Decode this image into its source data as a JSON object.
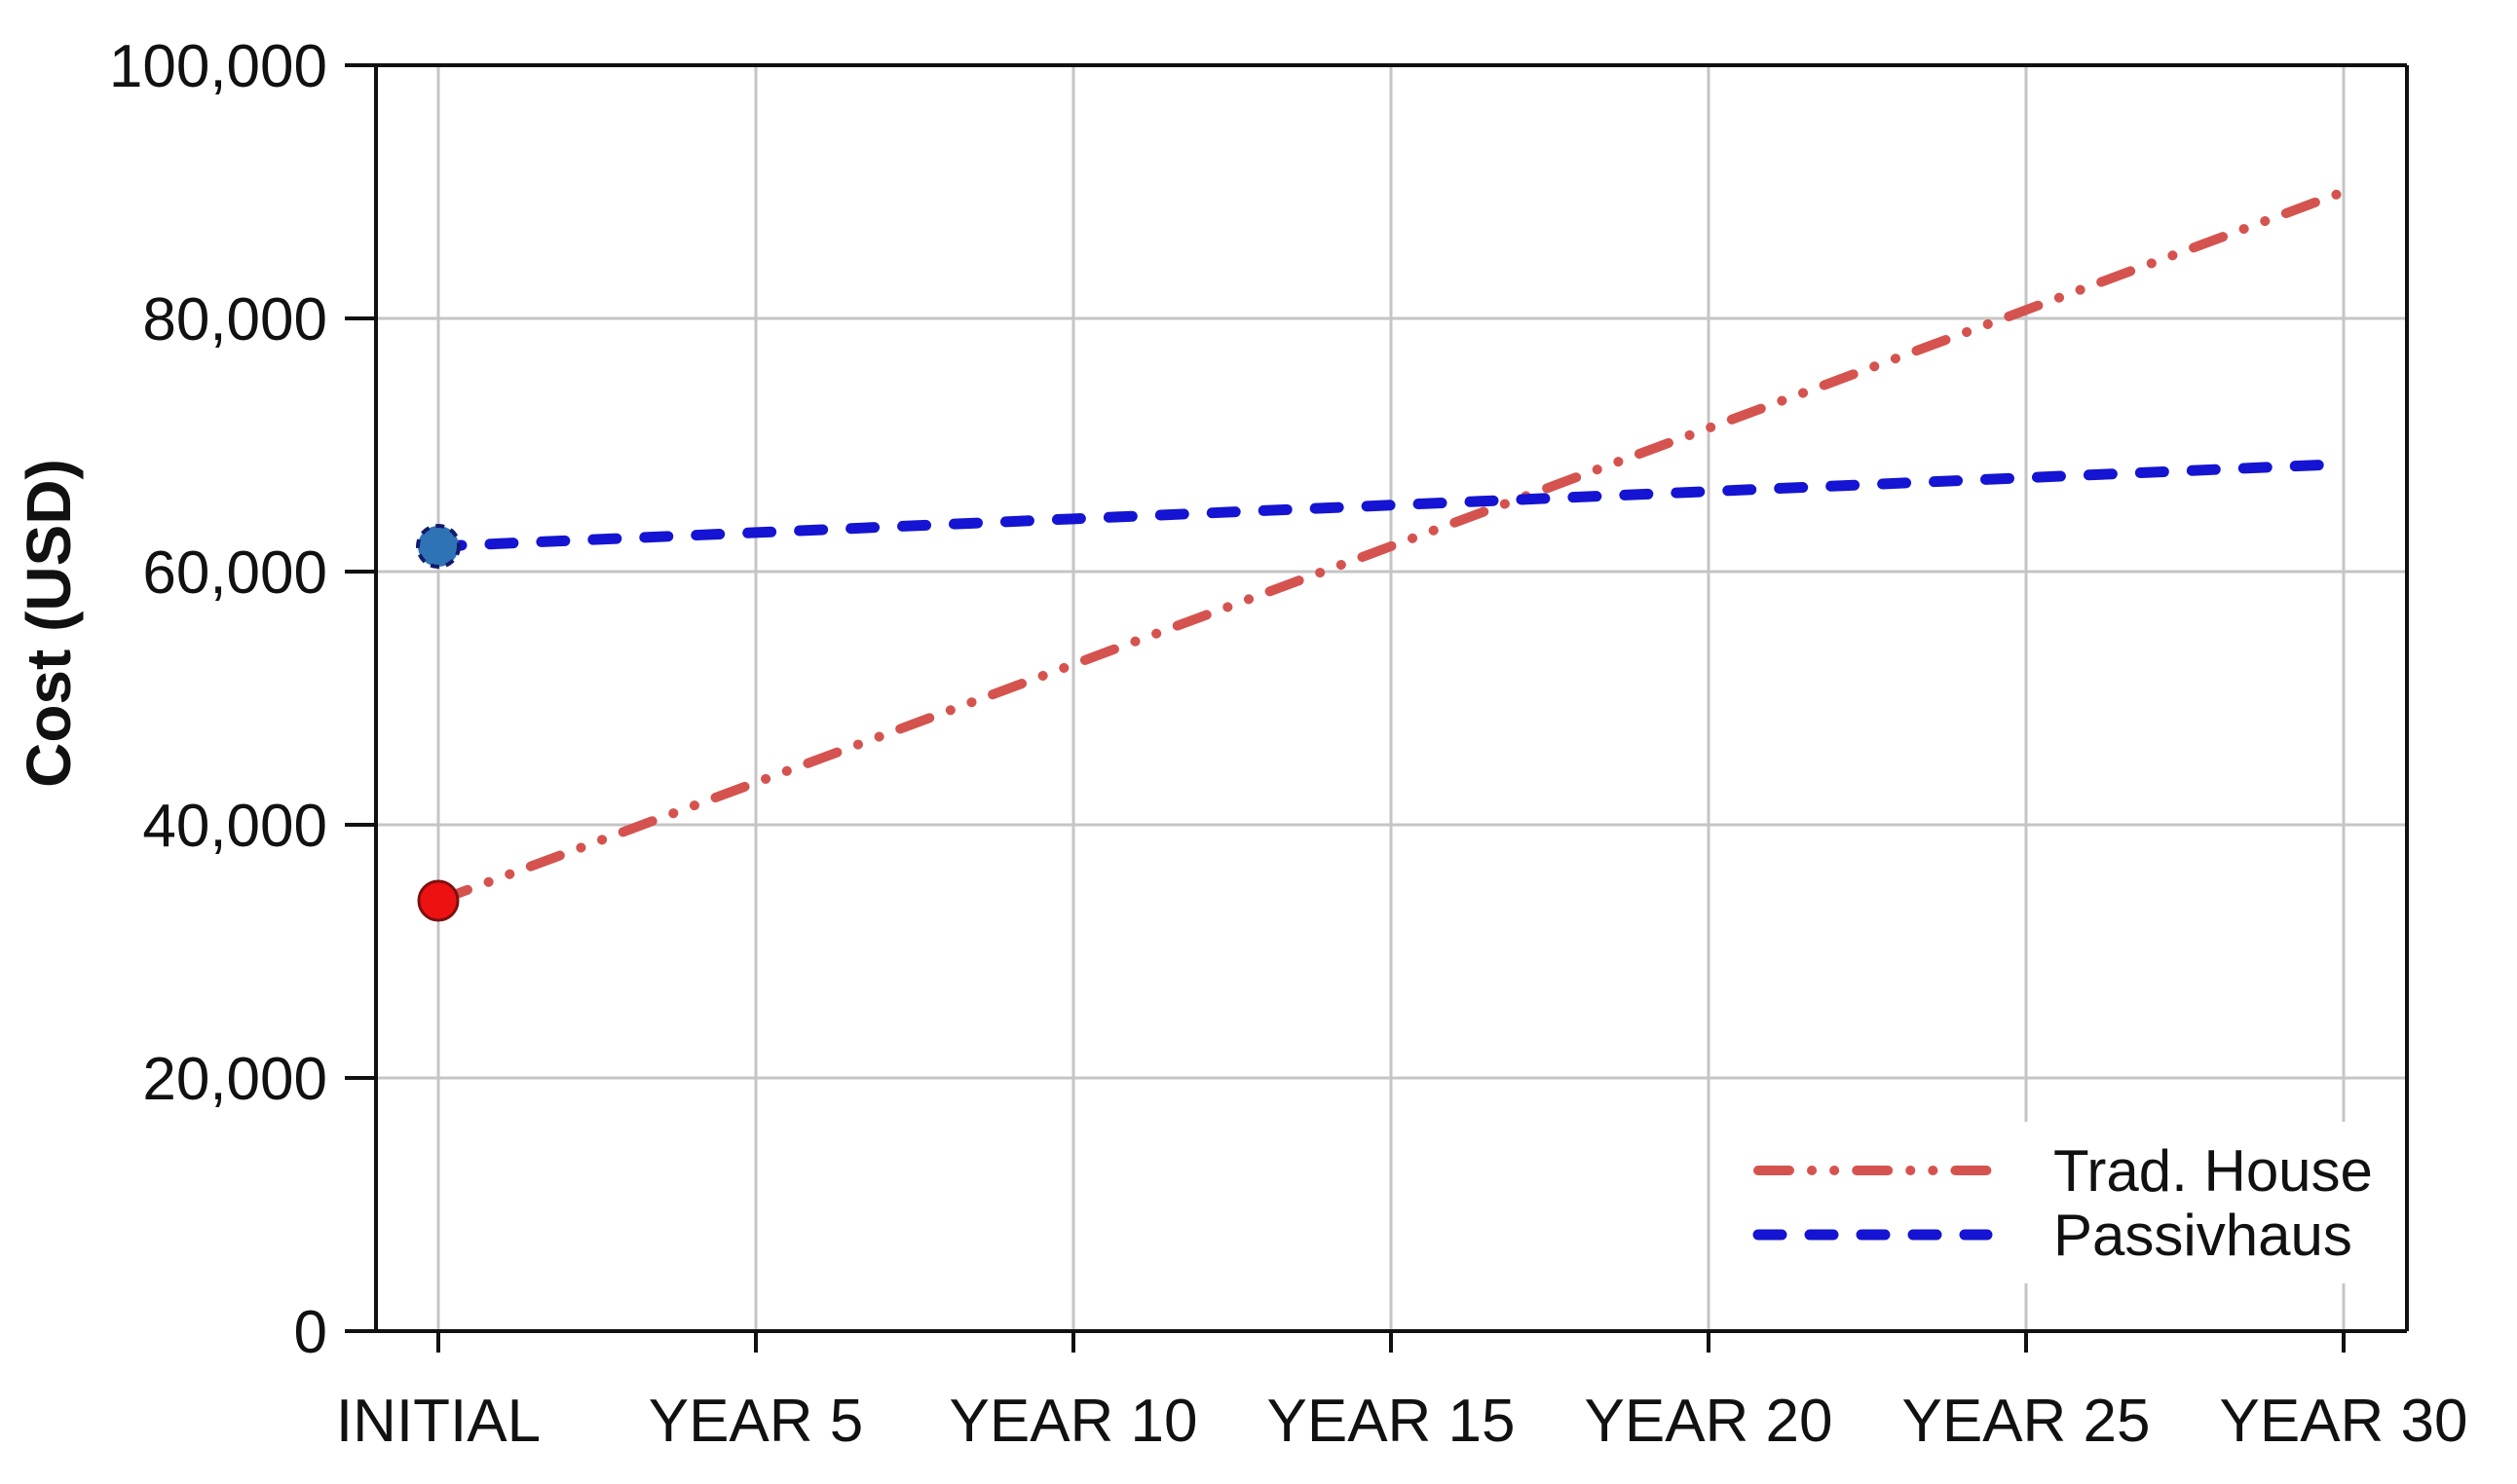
{
  "chart_data": {
    "type": "line",
    "title": "",
    "xlabel": "",
    "ylabel": "Cost (USD)",
    "categories": [
      "INITIAL",
      "YEAR 5",
      "YEAR 10",
      "YEAR 15",
      "YEAR 20",
      "YEAR 25",
      "YEAR 30"
    ],
    "ylim": [
      0,
      100000
    ],
    "yticks": [
      {
        "value": 0,
        "label": "0"
      },
      {
        "value": 20000,
        "label": "20,000"
      },
      {
        "value": 40000,
        "label": "40,000"
      },
      {
        "value": 60000,
        "label": "60,000"
      },
      {
        "value": 80000,
        "label": "80,000"
      },
      {
        "value": 100000,
        "label": "100,000"
      }
    ],
    "grid": true,
    "legend_position": "bottom-right",
    "series": [
      {
        "name": "Trad. House",
        "line_style": "dash-dot-dot",
        "color": "#D5534F",
        "marker": "circle-at-first-point",
        "marker_color": "#EE1111",
        "marker_edge_color": "#7E100E",
        "values": [
          34000,
          43333,
          52667,
          62000,
          71333,
          80667,
          90000
        ]
      },
      {
        "name": "Passivhaus",
        "line_style": "dashed",
        "color": "#1414D2",
        "marker": "circle-at-first-point",
        "marker_color": "#2E73B5",
        "marker_edge_color": "#131B6B",
        "values": [
          62000,
          63083,
          64167,
          65250,
          66333,
          67417,
          68500
        ]
      }
    ],
    "annotations": {
      "trad_initial_cost": 34000,
      "passiv_initial_cost": 62000,
      "trad_year30_cost": 90000,
      "passiv_year30_cost": 68500
    },
    "colors": {
      "grid": "#C5C5C5",
      "axis": "#111111",
      "background": "#FFFFFF"
    }
  }
}
